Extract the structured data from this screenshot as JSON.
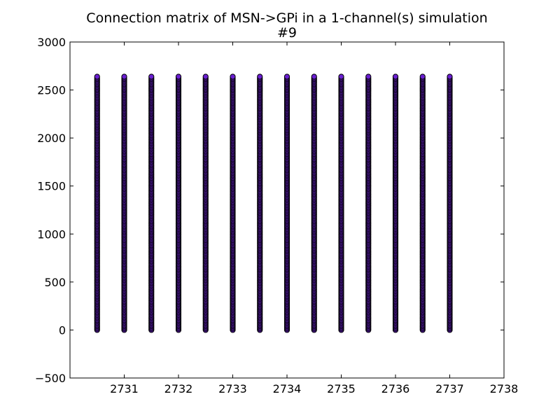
{
  "chart_data": {
    "type": "scatter",
    "title": "Connection matrix of MSN->GPi in a 1-channel(s) simulation",
    "subtitle": "#9",
    "xlabel": "",
    "ylabel": "",
    "xlim": [
      2730,
      2738
    ],
    "ylim": [
      -500,
      3000
    ],
    "x_ticks": [
      2731,
      2732,
      2733,
      2734,
      2735,
      2736,
      2737,
      2738
    ],
    "y_ticks": [
      -500,
      0,
      500,
      1000,
      1500,
      2000,
      2500,
      3000
    ],
    "x_tick_labels": [
      "2731",
      "2732",
      "2733",
      "2734",
      "2735",
      "2736",
      "2737",
      "2738"
    ],
    "y_tick_labels": [
      "−500",
      "0",
      "500",
      "1000",
      "1500",
      "2000",
      "2500",
      "3000"
    ],
    "grid": false,
    "marker_fill": "#6a1fd1",
    "marker_edge": "#000000",
    "columns_x": [
      2730.5,
      2731,
      2731.5,
      2732,
      2732.5,
      2733,
      2733.5,
      2734,
      2734.5,
      2735,
      2735.5,
      2736,
      2736.5,
      2737
    ],
    "y_range_per_column": [
      0,
      2640
    ]
  }
}
